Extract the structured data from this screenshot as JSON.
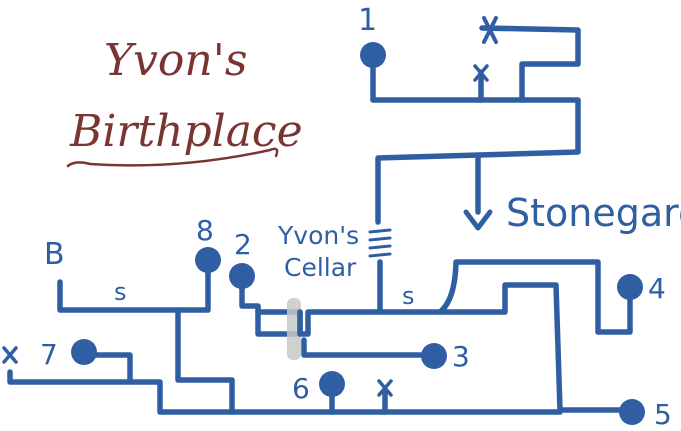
{
  "title": {
    "line1": "Yvon's",
    "line2": "Birthplace"
  },
  "places": {
    "stonegard": "Stonegard",
    "cellar_line1": "Yvon's",
    "cellar_line2": "Cellar"
  },
  "markers": {
    "B": "B",
    "s_left": "s",
    "s_right": "s"
  },
  "nodes": [
    {
      "id": "n1",
      "label": "1"
    },
    {
      "id": "n2",
      "label": "2"
    },
    {
      "id": "n3",
      "label": "3"
    },
    {
      "id": "n4",
      "label": "4"
    },
    {
      "id": "n5",
      "label": "5"
    },
    {
      "id": "n6",
      "label": "6"
    },
    {
      "id": "n7",
      "label": "7"
    },
    {
      "id": "n8",
      "label": "8"
    }
  ],
  "colors": {
    "path": "#2f5fa2",
    "title": "#7a3533",
    "bridge": "#c8c8c8"
  },
  "icons": [
    "x-mark-icon",
    "ladder-icon",
    "arrow-down-icon",
    "node-dot-icon"
  ]
}
